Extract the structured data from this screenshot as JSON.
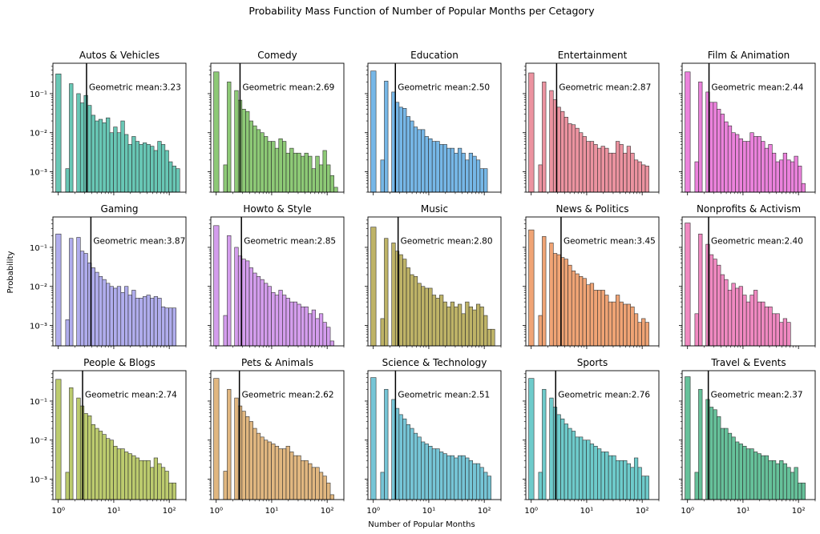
{
  "figure": {
    "title": "Probability Mass Function of Number of Popular Months per Cetagory",
    "xlabel": "Number of Popular Months",
    "ylabel": "Probability"
  },
  "chart_data": {
    "type": "bar",
    "layout": "3x5 small multiples, shared log-scaled x and y axes",
    "xscale": "log",
    "yscale": "log",
    "xlim": [
      0.8,
      200
    ],
    "ylim": [
      0.0003,
      0.6
    ],
    "xticks": [
      {
        "value": 1,
        "label": "10⁰"
      },
      {
        "value": 10,
        "label": "10¹"
      },
      {
        "value": 100,
        "label": "10²"
      }
    ],
    "yticks": [
      {
        "value": 0.001,
        "label": "10⁻³"
      },
      {
        "value": 0.01,
        "label": "10⁻²"
      },
      {
        "value": 0.1,
        "label": "10⁻¹"
      }
    ],
    "bar_edge_color": "#333333",
    "mean_line_color": "#000000",
    "grid": false,
    "panels": [
      {
        "title": "Autos & Vehicles",
        "color": "#3db7a0",
        "mean": 3.23,
        "mean_label": "Geometric mean:3.23",
        "values": [
          0.32,
          0,
          0.0012,
          0.18,
          0,
          0.1,
          0.058,
          0.09,
          0.05,
          0.028,
          0.02,
          0.022,
          0.018,
          0.024,
          0.01,
          0.014,
          0.01,
          0.02,
          0.009,
          0.005,
          0.008,
          0.006,
          0.005,
          0.0055,
          0.005,
          0.0045,
          0.0035,
          0.006,
          0.005,
          0.0035,
          0.0018,
          0.0014,
          0.0012
        ]
      },
      {
        "title": "Comedy",
        "color": "#6dba4f",
        "mean": 2.69,
        "mean_label": "Geometric mean:2.69",
        "values": [
          0.36,
          0,
          0.0015,
          0.2,
          0,
          0.12,
          0.068,
          0.04,
          0.035,
          0.02,
          0.015,
          0.012,
          0.01,
          0.008,
          0.006,
          0.006,
          0.004,
          0.007,
          0.006,
          0.003,
          0.004,
          0.003,
          0.003,
          0.0025,
          0.003,
          0.0025,
          0.0012,
          0.0025,
          0.0015,
          0.0035,
          0.0015,
          0.0008,
          0.0004
        ]
      },
      {
        "title": "Education",
        "color": "#4fa3e0",
        "mean": 2.5,
        "mean_label": "Geometric mean:2.50",
        "values": [
          0.38,
          0,
          0.002,
          0.21,
          0,
          0.11,
          0.06,
          0.045,
          0.042,
          0.026,
          0.02,
          0.014,
          0.012,
          0.012,
          0.008,
          0.007,
          0.006,
          0.006,
          0.005,
          0.005,
          0.004,
          0.004,
          0.003,
          0.004,
          0.003,
          0.002,
          0.003,
          0.0025,
          0.002,
          0.0012,
          0.0012
        ]
      },
      {
        "title": "Entertainment",
        "color": "#e77585",
        "mean": 2.87,
        "mean_label": "Geometric mean:2.87",
        "values": [
          0.34,
          0,
          0.0015,
          0.2,
          0,
          0.12,
          0.07,
          0.045,
          0.035,
          0.025,
          0.017,
          0.016,
          0.013,
          0.01,
          0.008,
          0.006,
          0.006,
          0.005,
          0.004,
          0.0045,
          0.004,
          0.003,
          0.003,
          0.006,
          0.005,
          0.003,
          0.0045,
          0.003,
          0.002,
          0.0018,
          0.0015,
          0.0014
        ]
      },
      {
        "title": "Film & Animation",
        "color": "#e55fd2",
        "mean": 2.44,
        "mean_label": "Geometric mean:2.44",
        "values": [
          0.36,
          0,
          0.0018,
          0.2,
          0,
          0.11,
          0.06,
          0.06,
          0.04,
          0.03,
          0.019,
          0.015,
          0.01,
          0.009,
          0.007,
          0.006,
          0.006,
          0.01,
          0.008,
          0.008,
          0.006,
          0.004,
          0.005,
          0.003,
          0.0018,
          0.002,
          0.003,
          0.002,
          0.0018,
          0.0025,
          0.0014,
          0.0005
        ]
      },
      {
        "title": "Gaming",
        "color": "#9a96e8",
        "mean": 3.87,
        "mean_label": "Geometric mean:3.87",
        "values": [
          0.22,
          0,
          0.0014,
          0.17,
          0,
          0.18,
          0.08,
          0.07,
          0.04,
          0.03,
          0.023,
          0.018,
          0.015,
          0.012,
          0.01,
          0.009,
          0.01,
          0.007,
          0.01,
          0.006,
          0.008,
          0.005,
          0.005,
          0.0055,
          0.006,
          0.005,
          0.0055,
          0.005,
          0.003,
          0.0028,
          0.0028,
          0.0028
        ]
      },
      {
        "title": "Howto & Style",
        "color": "#c882e8",
        "mean": 2.85,
        "mean_label": "Geometric mean:2.85",
        "values": [
          0.36,
          0,
          0.0018,
          0.2,
          0,
          0.1,
          0.06,
          0.05,
          0.045,
          0.03,
          0.022,
          0.018,
          0.015,
          0.012,
          0.01,
          0.007,
          0.006,
          0.008,
          0.006,
          0.005,
          0.004,
          0.004,
          0.0035,
          0.003,
          0.003,
          0.002,
          0.0025,
          0.0015,
          0.002,
          0.0012,
          0.0009,
          0.0004
        ]
      },
      {
        "title": "Music",
        "color": "#ac9d3c",
        "mean": 2.8,
        "mean_label": "Geometric mean:2.80",
        "values": [
          0.33,
          0,
          0.0015,
          0.17,
          0,
          0.13,
          0.08,
          0.065,
          0.05,
          0.03,
          0.02,
          0.018,
          0.012,
          0.01,
          0.009,
          0.009,
          0.006,
          0.005,
          0.006,
          0.004,
          0.003,
          0.004,
          0.003,
          0.0035,
          0.002,
          0.004,
          0.003,
          0.0025,
          0.0035,
          0.003,
          0.0018,
          0.0008,
          0.0008
        ]
      },
      {
        "title": "News & Politics",
        "color": "#ec8a4e",
        "mean": 3.45,
        "mean_label": "Geometric mean:3.45",
        "values": [
          0.28,
          0,
          0.0018,
          0.19,
          0,
          0.13,
          0.07,
          0.065,
          0.055,
          0.05,
          0.035,
          0.025,
          0.021,
          0.018,
          0.016,
          0.011,
          0.012,
          0.008,
          0.008,
          0.008,
          0.006,
          0.004,
          0.004,
          0.006,
          0.004,
          0.0035,
          0.0035,
          0.003,
          0.002,
          0.0012,
          0.0015,
          0.0012
        ]
      },
      {
        "title": "Nonprofits & Activism",
        "color": "#ec68b0",
        "mean": 2.4,
        "mean_label": "Geometric mean:2.40",
        "values": [
          0.42,
          0,
          0.002,
          0.22,
          0,
          0.12,
          0.065,
          0.05,
          0.035,
          0.02,
          0.015,
          0.008,
          0.012,
          0.009,
          0.01,
          0.006,
          0.004,
          0.006,
          0.008,
          0.004,
          0.004,
          0.003,
          0.003,
          0.002,
          0.002,
          0.0012,
          0.0015,
          0.0012
        ]
      },
      {
        "title": "People & Blogs",
        "color": "#a9bd45",
        "mean": 2.74,
        "mean_label": "Geometric mean:2.74",
        "values": [
          0.36,
          0,
          0.0015,
          0.22,
          0,
          0.12,
          0.075,
          0.048,
          0.042,
          0.025,
          0.02,
          0.017,
          0.014,
          0.011,
          0.01,
          0.007,
          0.006,
          0.006,
          0.005,
          0.0045,
          0.004,
          0.0035,
          0.003,
          0.003,
          0.003,
          0.002,
          0.0035,
          0.0025,
          0.002,
          0.0016,
          0.0008,
          0.0008
        ]
      },
      {
        "title": "Pets & Animals",
        "color": "#d9a35c",
        "mean": 2.62,
        "mean_label": "Geometric mean:2.62",
        "values": [
          0.38,
          0,
          0.0016,
          0.2,
          0,
          0.12,
          0.075,
          0.055,
          0.04,
          0.03,
          0.02,
          0.015,
          0.012,
          0.01,
          0.009,
          0.008,
          0.007,
          0.006,
          0.006,
          0.007,
          0.005,
          0.004,
          0.004,
          0.003,
          0.003,
          0.0025,
          0.002,
          0.002,
          0.0015,
          0.0012,
          0.0008,
          0.0004
        ]
      },
      {
        "title": "Science & Technology",
        "color": "#4fb5ca",
        "mean": 2.51,
        "mean_label": "Geometric mean:2.51",
        "values": [
          0.4,
          0,
          0.0015,
          0.2,
          0,
          0.11,
          0.065,
          0.045,
          0.035,
          0.025,
          0.02,
          0.015,
          0.012,
          0.009,
          0.008,
          0.007,
          0.006,
          0.006,
          0.005,
          0.0045,
          0.004,
          0.004,
          0.0035,
          0.004,
          0.004,
          0.0035,
          0.003,
          0.0025,
          0.0025,
          0.002,
          0.0015,
          0.0012
        ]
      },
      {
        "title": "Sports",
        "color": "#45bdbd",
        "mean": 2.76,
        "mean_label": "Geometric mean:2.76",
        "values": [
          0.38,
          0,
          0.0015,
          0.2,
          0,
          0.12,
          0.07,
          0.045,
          0.035,
          0.026,
          0.02,
          0.017,
          0.012,
          0.012,
          0.01,
          0.01,
          0.008,
          0.007,
          0.006,
          0.005,
          0.005,
          0.004,
          0.004,
          0.003,
          0.003,
          0.003,
          0.0025,
          0.002,
          0.0035,
          0.002,
          0.0012,
          0.0012
        ]
      },
      {
        "title": "Travel & Events",
        "color": "#3bb07e",
        "mean": 2.37,
        "mean_label": "Geometric mean:2.37",
        "values": [
          0.42,
          0,
          0.0015,
          0.2,
          0,
          0.11,
          0.07,
          0.06,
          0.04,
          0.02,
          0.02,
          0.015,
          0.012,
          0.009,
          0.008,
          0.007,
          0.006,
          0.006,
          0.005,
          0.0045,
          0.004,
          0.004,
          0.003,
          0.003,
          0.0025,
          0.003,
          0.0025,
          0.002,
          0.0015,
          0.002,
          0.0008,
          0.0008
        ]
      }
    ]
  }
}
